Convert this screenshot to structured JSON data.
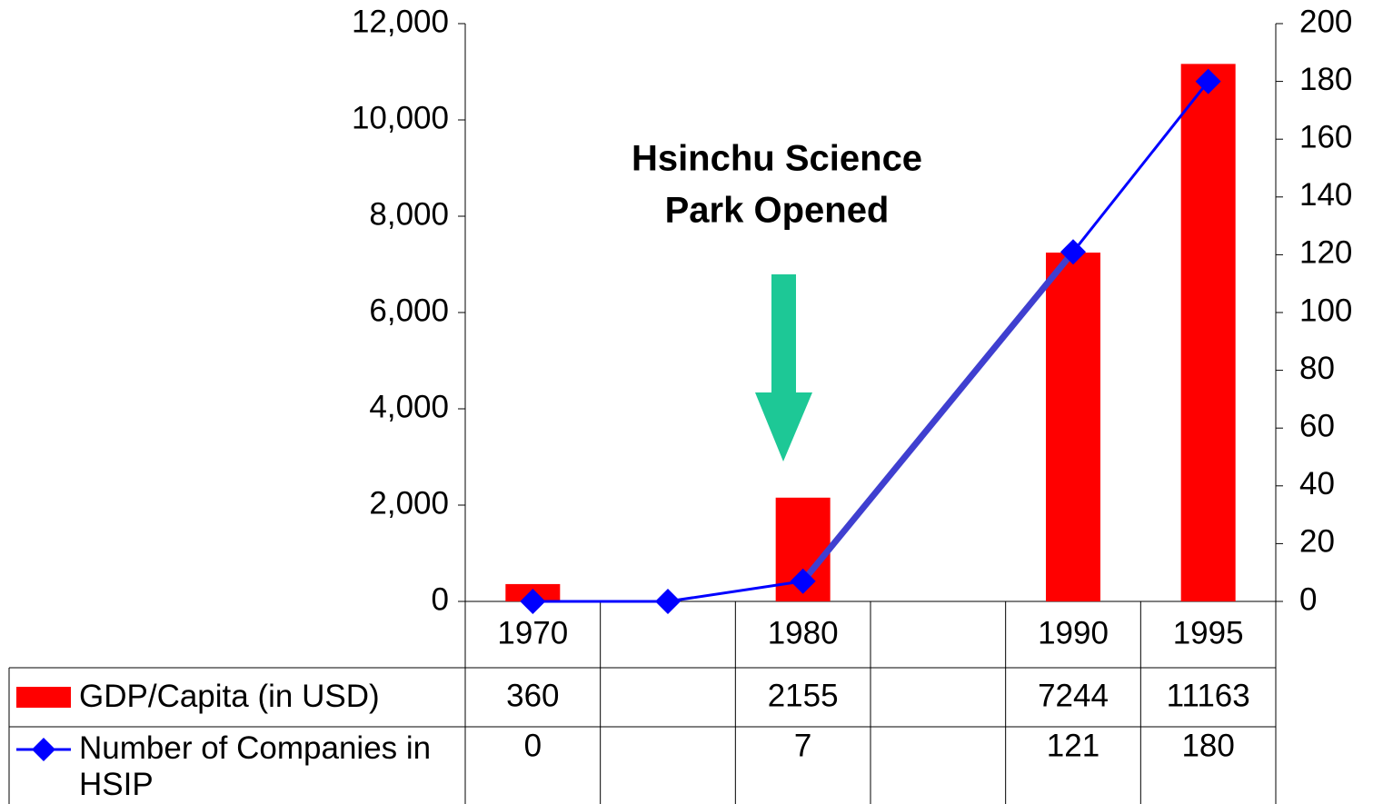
{
  "chart_data": {
    "type": "bar",
    "annotation": [
      "Hsinchu Science",
      "Park Opened"
    ],
    "categories": [
      "1970",
      null,
      "1980",
      null,
      "1990",
      "1995"
    ],
    "series": [
      {
        "name": "GDP/Capita (in USD)",
        "type": "bar",
        "color": "#ff0000",
        "values": [
          360,
          null,
          2155,
          null,
          7244,
          11163
        ]
      },
      {
        "name": "Number of Companies in HSIP",
        "type": "line",
        "axis": "y2",
        "color": "#0000ff",
        "values": [
          0,
          0,
          7,
          null,
          121,
          180
        ],
        "value_labels": [
          "0",
          null,
          "7",
          null,
          "121",
          "180"
        ]
      }
    ],
    "ylim": [
      0,
      12000
    ],
    "yticks": [
      0,
      {
        "value": 2000,
        "label": "2,000"
      },
      {
        "value": 4000,
        "label": "4,000"
      },
      {
        "value": 6000,
        "label": "6,000"
      },
      {
        "value": 8000,
        "label": "8,000"
      },
      {
        "value": 10000,
        "label": "10,000"
      },
      {
        "value": 12000,
        "label": "12,000"
      }
    ],
    "y2lim": [
      0,
      200
    ],
    "y2ticks": [
      0,
      20,
      40,
      60,
      80,
      100,
      120,
      140,
      160,
      180,
      200
    ],
    "data_table": true
  }
}
